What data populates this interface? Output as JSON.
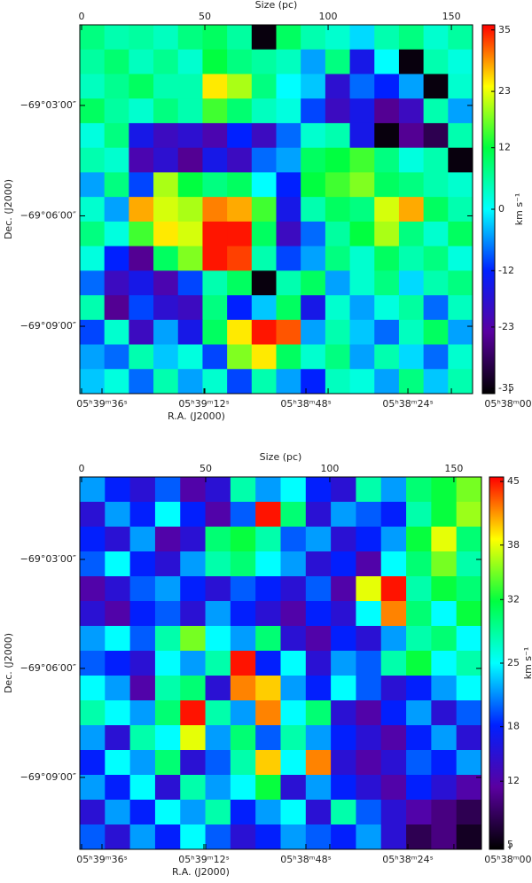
{
  "chart_data": [
    {
      "type": "heatmap",
      "xlabel": "Size (pc)",
      "xlim": [
        -0.72,
        158.6
      ],
      "xticks": [
        0,
        50,
        100,
        150
      ],
      "x2label": "R.A. (J2000)",
      "x2lim": [
        102.96,
        -20.3
      ],
      "x2ticks": [
        {
          "value": 96,
          "label": "05ʰ39ᵐ36ˢ"
        },
        {
          "value": 64,
          "label": "05ʰ39ᵐ12ˢ"
        },
        {
          "value": 32,
          "label": "05ʰ38ᵐ48ˢ"
        },
        {
          "value": 0,
          "label": "05ʰ38ᵐ24ˢ"
        },
        {
          "value": -32,
          "label": "05ʰ38ᵐ00ˢ"
        }
      ],
      "ylabel": "Dec. (J2000)",
      "ylim": [
        -10.83,
        -0.81
      ],
      "yticks": [
        {
          "value": -3,
          "label": "−69°03′00″"
        },
        {
          "value": -6,
          "label": "−69°06′00″"
        },
        {
          "value": -9,
          "label": "−69°09′00″"
        }
      ],
      "zlabel": "km s⁻¹",
      "zlim": [
        -36,
        36
      ],
      "zticks": [
        35,
        23,
        12,
        0,
        -12,
        -23,
        -35
      ],
      "colormap": [
        "#000000",
        "#5a00a0",
        "#0020ff",
        "#00ffff",
        "#00ff40",
        "#ffff00",
        "#ff0000"
      ],
      "z": [
        [
          8,
          5,
          6,
          4,
          8,
          10,
          6,
          -35,
          10,
          5,
          3,
          -2,
          5,
          8,
          3,
          6
        ],
        [
          6,
          9,
          4,
          7,
          3,
          12,
          8,
          6,
          4,
          -5,
          8,
          -15,
          0,
          -35,
          5,
          2
        ],
        [
          4,
          7,
          10,
          5,
          5,
          25,
          20,
          8,
          0,
          -3,
          -18,
          -8,
          -12,
          -5,
          -35,
          3
        ],
        [
          10,
          6,
          3,
          8,
          5,
          15,
          9,
          4,
          2,
          -10,
          -20,
          -15,
          -25,
          -20,
          5,
          -5
        ],
        [
          2,
          8,
          -15,
          -20,
          -18,
          -22,
          -12,
          -20,
          -8,
          3,
          5,
          -15,
          -35,
          -25,
          -30,
          5
        ],
        [
          5,
          3,
          -22,
          -18,
          -25,
          -15,
          -20,
          -8,
          -5,
          10,
          12,
          15,
          8,
          2,
          5,
          -35
        ],
        [
          -5,
          8,
          -10,
          20,
          12,
          8,
          10,
          0,
          -12,
          12,
          15,
          18,
          10,
          8,
          5,
          3
        ],
        [
          3,
          -5,
          28,
          22,
          20,
          30,
          28,
          15,
          -15,
          5,
          10,
          8,
          22,
          28,
          10,
          5
        ],
        [
          8,
          2,
          15,
          25,
          22,
          35,
          35,
          10,
          -20,
          -8,
          6,
          12,
          20,
          8,
          3,
          10
        ],
        [
          2,
          -12,
          -25,
          10,
          18,
          35,
          33,
          5,
          -10,
          -5,
          8,
          3,
          10,
          5,
          8,
          2
        ],
        [
          -8,
          -20,
          -15,
          -22,
          -10,
          5,
          10,
          -35,
          5,
          10,
          -5,
          3,
          8,
          -2,
          5,
          8
        ],
        [
          5,
          -25,
          -10,
          -18,
          -20,
          8,
          -12,
          -3,
          10,
          -15,
          3,
          -5,
          2,
          6,
          -8,
          4
        ],
        [
          -10,
          3,
          -20,
          -5,
          -15,
          10,
          25,
          35,
          32,
          -5,
          5,
          -3,
          -8,
          4,
          10,
          -5
        ],
        [
          -5,
          -8,
          5,
          -3,
          2,
          -10,
          18,
          25,
          10,
          3,
          8,
          -5,
          5,
          -2,
          -8,
          3
        ],
        [
          -3,
          2,
          -8,
          5,
          -5,
          3,
          -10,
          5,
          -5,
          -12,
          4,
          2,
          -5,
          8,
          -3,
          5
        ]
      ]
    },
    {
      "type": "heatmap",
      "xlabel": "Size (pc)",
      "xlim": [
        -0.71,
        161.1
      ],
      "xticks": [
        0,
        50,
        100,
        150
      ],
      "x2label": "R.A. (J2000)",
      "x2lim": [
        102.96,
        -23.1
      ],
      "x2ticks": [
        {
          "value": 96,
          "label": "05ʰ39ᵐ36ˢ"
        },
        {
          "value": 64,
          "label": "05ʰ39ᵐ12ˢ"
        },
        {
          "value": 32,
          "label": "05ʰ38ᵐ48ˢ"
        },
        {
          "value": 0,
          "label": "05ʰ38ᵐ24ˢ"
        },
        {
          "value": -32,
          "label": "05ʰ38ᵐ00ˢ"
        }
      ],
      "ylabel": "Dec. (J2000)",
      "ylim": [
        -10.98,
        -0.73
      ],
      "yticks": [
        {
          "value": -3,
          "label": "−69°03′00″"
        },
        {
          "value": -6,
          "label": "−69°06′00″"
        },
        {
          "value": -9,
          "label": "−69°09′00″"
        }
      ],
      "zlabel": "km s⁻¹",
      "zlim": [
        4.5,
        45.5
      ],
      "zticks": [
        45,
        38,
        32,
        25,
        18,
        12,
        5
      ],
      "colormap": [
        "#000000",
        "#5a00a0",
        "#0020ff",
        "#00ffff",
        "#00ff40",
        "#ffff00",
        "#ff0000"
      ],
      "z": [
        [
          22,
          18,
          15,
          20,
          12,
          15,
          28,
          22,
          25,
          18,
          15,
          28,
          22,
          30,
          32,
          35
        ],
        [
          15,
          22,
          18,
          25,
          18,
          12,
          20,
          45,
          30,
          15,
          22,
          20,
          18,
          28,
          32,
          36
        ],
        [
          18,
          15,
          22,
          12,
          15,
          30,
          32,
          28,
          20,
          22,
          15,
          18,
          22,
          32,
          38,
          30
        ],
        [
          20,
          25,
          18,
          15,
          22,
          28,
          30,
          25,
          22,
          15,
          18,
          12,
          25,
          30,
          35,
          28
        ],
        [
          12,
          15,
          20,
          22,
          18,
          15,
          20,
          18,
          15,
          20,
          12,
          38,
          45,
          28,
          32,
          30
        ],
        [
          15,
          12,
          18,
          20,
          15,
          22,
          18,
          15,
          12,
          18,
          15,
          25,
          42,
          30,
          25,
          32
        ],
        [
          22,
          25,
          20,
          28,
          35,
          25,
          22,
          30,
          15,
          12,
          18,
          15,
          22,
          28,
          30,
          25
        ],
        [
          20,
          18,
          15,
          25,
          22,
          28,
          45,
          18,
          25,
          15,
          22,
          20,
          28,
          32,
          25,
          28
        ],
        [
          25,
          22,
          12,
          28,
          30,
          15,
          42,
          40,
          22,
          18,
          25,
          20,
          15,
          18,
          22,
          25
        ],
        [
          28,
          25,
          22,
          30,
          45,
          28,
          22,
          42,
          25,
          30,
          15,
          12,
          18,
          22,
          15,
          20
        ],
        [
          22,
          15,
          28,
          25,
          38,
          22,
          30,
          20,
          28,
          22,
          18,
          15,
          12,
          18,
          22,
          15
        ],
        [
          18,
          25,
          22,
          30,
          15,
          20,
          28,
          40,
          25,
          42,
          15,
          12,
          15,
          20,
          18,
          22
        ],
        [
          22,
          18,
          25,
          15,
          28,
          22,
          25,
          32,
          15,
          22,
          18,
          15,
          12,
          18,
          15,
          12
        ],
        [
          15,
          22,
          18,
          25,
          22,
          28,
          18,
          22,
          25,
          15,
          28,
          20,
          15,
          12,
          10,
          8
        ],
        [
          20,
          15,
          22,
          18,
          25,
          20,
          15,
          18,
          22,
          20,
          18,
          22,
          15,
          8,
          10,
          6
        ]
      ]
    }
  ]
}
